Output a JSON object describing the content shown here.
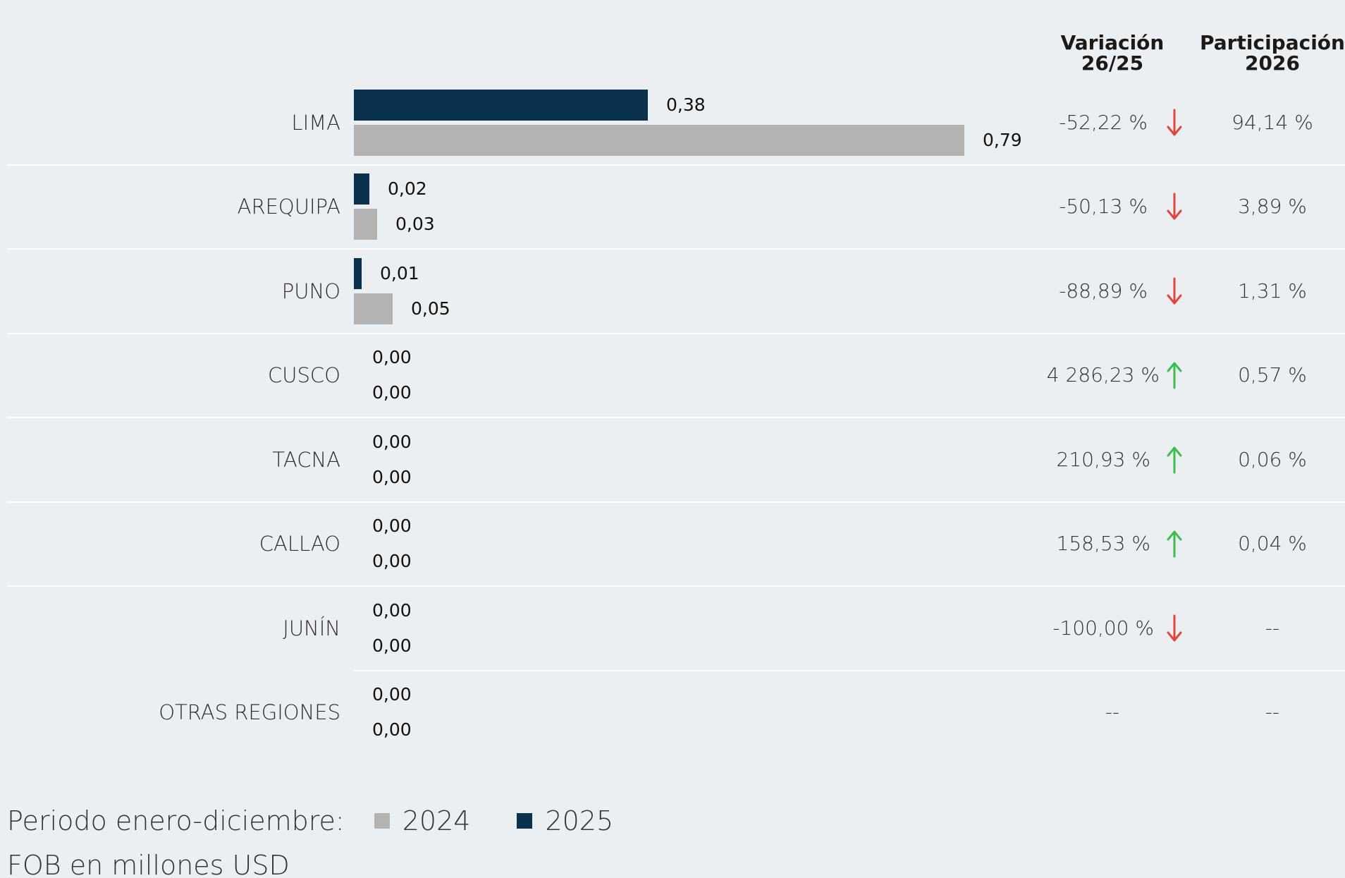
{
  "headers": {
    "variacion": [
      "Variación",
      "26/25"
    ],
    "participacion": [
      "Participación",
      "2026"
    ]
  },
  "colors": {
    "series_2025": "#0a324f",
    "series_2024": "#b3b3b3",
    "arrow_down": "#e0463c",
    "arrow_up": "#3bbf4f",
    "background": "#eceff2"
  },
  "chart_data": {
    "type": "bar",
    "orientation": "horizontal",
    "categories": [
      "LIMA",
      "AREQUIPA",
      "PUNO",
      "CUSCO",
      "TACNA",
      "CALLAO",
      "JUNÍN",
      "OTRAS REGIONES"
    ],
    "series": [
      {
        "name": "2025",
        "values": [
          0.38,
          0.02,
          0.01,
          0.0,
          0.0,
          0.0,
          0.0,
          0.0
        ],
        "labels": [
          "0,38",
          "0,02",
          "0,01",
          "0,00",
          "0,00",
          "0,00",
          "0,00",
          "0,00"
        ]
      },
      {
        "name": "2024",
        "values": [
          0.79,
          0.03,
          0.05,
          0.0,
          0.0,
          0.0,
          0.0,
          0.0
        ],
        "labels": [
          "0,79",
          "0,03",
          "0,05",
          "0,00",
          "0,00",
          "0,00",
          "0,00",
          "0,00"
        ]
      }
    ],
    "variacion": [
      {
        "text": "-52,22 %",
        "direction": "down"
      },
      {
        "text": "-50,13 %",
        "direction": "down"
      },
      {
        "text": "-88,89 %",
        "direction": "down"
      },
      {
        "text": "4 286,23 %",
        "direction": "up"
      },
      {
        "text": "210,93 %",
        "direction": "up"
      },
      {
        "text": "158,53 %",
        "direction": "up"
      },
      {
        "text": "-100,00 %",
        "direction": "down"
      },
      {
        "text": "--",
        "direction": "none"
      }
    ],
    "participacion": [
      "94,14 %",
      "3,89 %",
      "1,31 %",
      "0,57 %",
      "0,06 %",
      "0,04 %",
      "--",
      "--"
    ],
    "xlim": [
      0,
      0.79
    ],
    "grid": false,
    "legend_position": "bottom-left"
  },
  "legend": {
    "prefix": "Periodo enero-diciembre:",
    "items": [
      {
        "label": "2024",
        "color": "#b3b3b3"
      },
      {
        "label": "2025",
        "color": "#0a324f"
      }
    ]
  },
  "unit_note": "FOB en millones USD"
}
